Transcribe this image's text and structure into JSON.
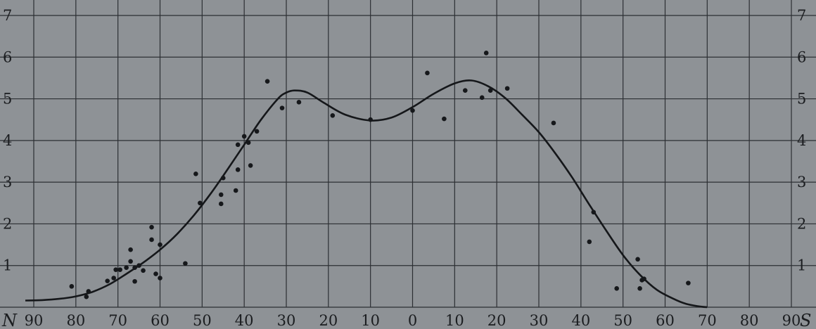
{
  "chart_data": {
    "type": "scatter",
    "title": "",
    "xlabel": "",
    "ylabel": "",
    "pole_labels": {
      "left": "N",
      "right": "S"
    },
    "x_ticks": [
      {
        "pos": -90,
        "label": "90"
      },
      {
        "pos": -80,
        "label": "80"
      },
      {
        "pos": -70,
        "label": "70"
      },
      {
        "pos": -60,
        "label": "60"
      },
      {
        "pos": -50,
        "label": "50"
      },
      {
        "pos": -40,
        "label": "40"
      },
      {
        "pos": -30,
        "label": "30"
      },
      {
        "pos": -20,
        "label": "20"
      },
      {
        "pos": -10,
        "label": "10"
      },
      {
        "pos": 0,
        "label": "0"
      },
      {
        "pos": 10,
        "label": "10"
      },
      {
        "pos": 20,
        "label": "20"
      },
      {
        "pos": 30,
        "label": "30"
      },
      {
        "pos": 40,
        "label": "40"
      },
      {
        "pos": 50,
        "label": "50"
      },
      {
        "pos": 60,
        "label": "60"
      },
      {
        "pos": 70,
        "label": "70"
      },
      {
        "pos": 80,
        "label": "80"
      },
      {
        "pos": 90,
        "label": "90"
      }
    ],
    "y_ticks_left": [
      "1",
      "2",
      "3",
      "4",
      "5",
      "6",
      "7"
    ],
    "y_ticks_right": [
      "1",
      "2",
      "3",
      "4",
      "5",
      "6",
      "7"
    ],
    "xlim": [
      -90,
      90
    ],
    "ylim": [
      0,
      7
    ],
    "grid": true,
    "points": [
      {
        "x": -81,
        "y": 0.5
      },
      {
        "x": -77.5,
        "y": 0.25
      },
      {
        "x": -77,
        "y": 0.38
      },
      {
        "x": -72.5,
        "y": 0.63
      },
      {
        "x": -71,
        "y": 0.7
      },
      {
        "x": -70.5,
        "y": 0.9
      },
      {
        "x": -69.5,
        "y": 0.9
      },
      {
        "x": -68,
        "y": 0.95
      },
      {
        "x": -67,
        "y": 1.1
      },
      {
        "x": -67,
        "y": 1.38
      },
      {
        "x": -66,
        "y": 0.95
      },
      {
        "x": -66,
        "y": 0.62
      },
      {
        "x": -65,
        "y": 1.0
      },
      {
        "x": -64,
        "y": 0.88
      },
      {
        "x": -62,
        "y": 1.92
      },
      {
        "x": -62,
        "y": 1.62
      },
      {
        "x": -61,
        "y": 0.8
      },
      {
        "x": -60,
        "y": 0.7
      },
      {
        "x": -60,
        "y": 1.5
      },
      {
        "x": -54,
        "y": 1.05
      },
      {
        "x": -51.5,
        "y": 3.2
      },
      {
        "x": -50.5,
        "y": 2.5
      },
      {
        "x": -45.5,
        "y": 2.7
      },
      {
        "x": -45.5,
        "y": 2.48
      },
      {
        "x": -45,
        "y": 3.1
      },
      {
        "x": -42,
        "y": 2.8
      },
      {
        "x": -41.5,
        "y": 3.3
      },
      {
        "x": -41.5,
        "y": 3.9
      },
      {
        "x": -40,
        "y": 4.1
      },
      {
        "x": -39,
        "y": 3.95
      },
      {
        "x": -38.5,
        "y": 3.4
      },
      {
        "x": -37,
        "y": 4.22
      },
      {
        "x": -34.5,
        "y": 5.42
      },
      {
        "x": -31,
        "y": 4.78
      },
      {
        "x": -27,
        "y": 4.92
      },
      {
        "x": -19,
        "y": 4.6
      },
      {
        "x": -10,
        "y": 4.5
      },
      {
        "x": 0,
        "y": 4.72
      },
      {
        "x": 3.5,
        "y": 5.62
      },
      {
        "x": 7.5,
        "y": 4.52
      },
      {
        "x": 12.5,
        "y": 5.2
      },
      {
        "x": 16.5,
        "y": 5.03
      },
      {
        "x": 17.5,
        "y": 6.1
      },
      {
        "x": 18.5,
        "y": 5.2
      },
      {
        "x": 22.5,
        "y": 5.25
      },
      {
        "x": 33.5,
        "y": 4.42
      },
      {
        "x": 43,
        "y": 2.28
      },
      {
        "x": 42,
        "y": 1.57
      },
      {
        "x": 48.5,
        "y": 0.45
      },
      {
        "x": 53.5,
        "y": 1.15
      },
      {
        "x": 54,
        "y": 0.45
      },
      {
        "x": 54.5,
        "y": 0.65
      },
      {
        "x": 55,
        "y": 0.68
      },
      {
        "x": 65.5,
        "y": 0.58
      }
    ],
    "curve": [
      [
        -92,
        0.16
      ],
      [
        -88,
        0.17
      ],
      [
        -84,
        0.2
      ],
      [
        -80,
        0.26
      ],
      [
        -76,
        0.37
      ],
      [
        -72,
        0.55
      ],
      [
        -68,
        0.8
      ],
      [
        -64,
        1.07
      ],
      [
        -60,
        1.38
      ],
      [
        -56,
        1.75
      ],
      [
        -52,
        2.2
      ],
      [
        -48,
        2.72
      ],
      [
        -44,
        3.3
      ],
      [
        -40,
        3.9
      ],
      [
        -36,
        4.5
      ],
      [
        -32,
        5.0
      ],
      [
        -30,
        5.15
      ],
      [
        -28,
        5.2
      ],
      [
        -25,
        5.15
      ],
      [
        -21,
        4.9
      ],
      [
        -16,
        4.62
      ],
      [
        -10,
        4.48
      ],
      [
        -5,
        4.55
      ],
      [
        0,
        4.8
      ],
      [
        5,
        5.12
      ],
      [
        10,
        5.37
      ],
      [
        14,
        5.44
      ],
      [
        18,
        5.3
      ],
      [
        22,
        5.02
      ],
      [
        26,
        4.62
      ],
      [
        30,
        4.2
      ],
      [
        34,
        3.68
      ],
      [
        38,
        3.1
      ],
      [
        42,
        2.46
      ],
      [
        46,
        1.84
      ],
      [
        50,
        1.25
      ],
      [
        54,
        0.78
      ],
      [
        58,
        0.42
      ],
      [
        62,
        0.2
      ],
      [
        65,
        0.08
      ],
      [
        68,
        0.02
      ],
      [
        70,
        0.0
      ]
    ]
  }
}
